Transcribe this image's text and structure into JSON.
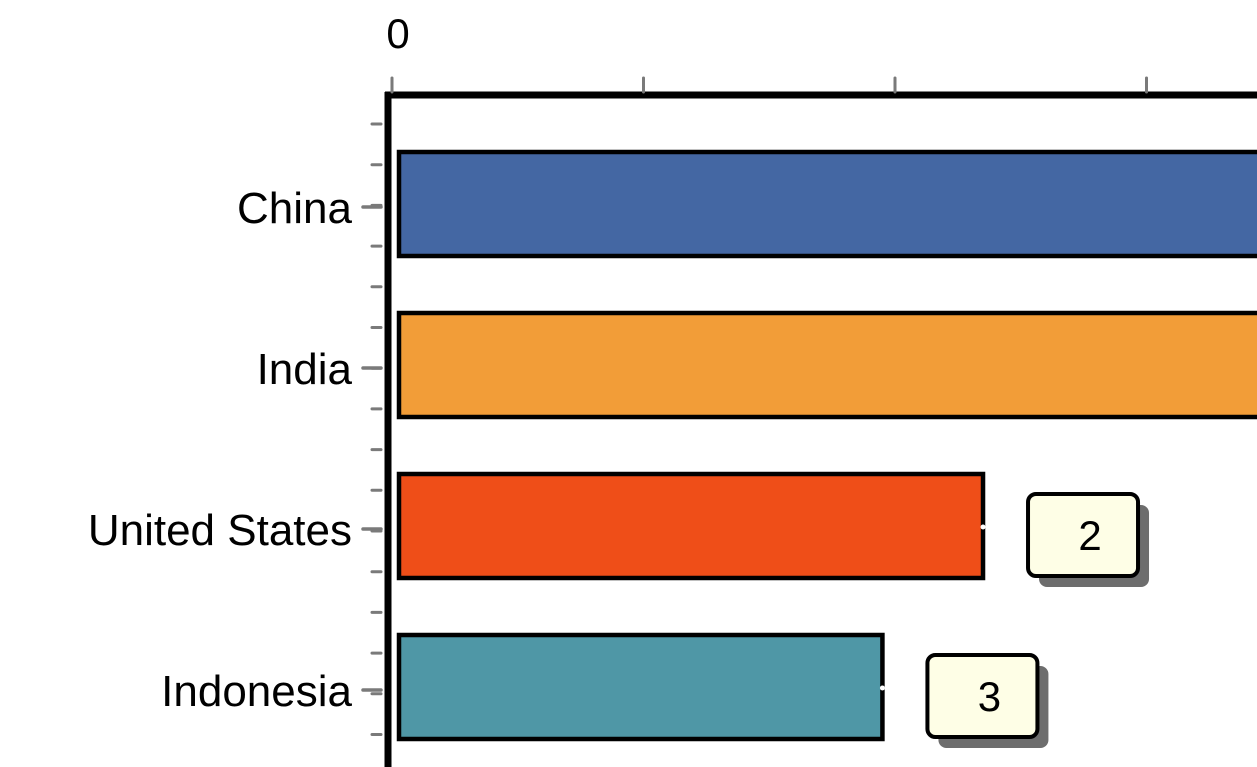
{
  "chart_data": {
    "type": "bar",
    "orientation": "horizontal",
    "title": "",
    "xlabel": "",
    "ylabel": "",
    "categories": [
      "China",
      "India",
      "United  States",
      "Indonesia"
    ],
    "values": [
      null,
      null,
      2.35,
      1.95
    ],
    "rank_labels": [
      "",
      "",
      "2",
      "3"
    ],
    "x_axis": {
      "position": "top",
      "tick_labels": [
        "0",
        "",
        "",
        ""
      ],
      "tick_values": [
        0,
        1,
        2,
        3
      ]
    },
    "colors": [
      "#4467a3",
      "#f29d38",
      "#ef4e18",
      "#4f97a6"
    ],
    "label_box_color": "#fefee6",
    "grid": false,
    "legend": "none"
  }
}
